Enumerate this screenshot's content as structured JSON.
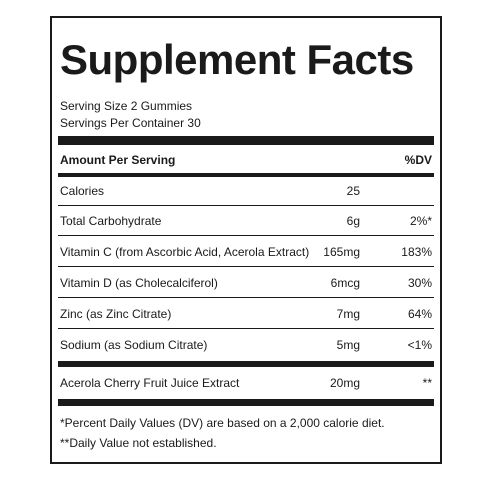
{
  "label": {
    "title": "Supplement Facts",
    "serving_size": "Serving Size 2 Gummies",
    "servings_per_container": "Servings Per Container 30",
    "header_amount": "Amount Per Serving",
    "header_dv": "%DV",
    "rows": [
      {
        "name": "Calories",
        "amount": "25",
        "dv": ""
      },
      {
        "name": "Total Carbohydrate",
        "amount": "6g",
        "dv": "2%*"
      },
      {
        "name": "Vitamin C (from Ascorbic Acid, Acerola Extract)",
        "amount": "165mg",
        "dv": "183%"
      },
      {
        "name": "Vitamin D (as Cholecalciferol)",
        "amount": "6mcg",
        "dv": "30%"
      },
      {
        "name": "Zinc (as Zinc Citrate)",
        "amount": "7mg",
        "dv": "64%"
      },
      {
        "name": "Sodium (as Sodium Citrate)",
        "amount": "5mg",
        "dv": "<1%"
      }
    ],
    "extra_row": {
      "name": "Acerola Cherry Fruit Juice Extract",
      "amount": "20mg",
      "dv": "**"
    },
    "footnote_1": "*Percent Daily Values (DV) are based on a 2,000 calorie diet.",
    "footnote_2": "**Daily Value not established."
  }
}
